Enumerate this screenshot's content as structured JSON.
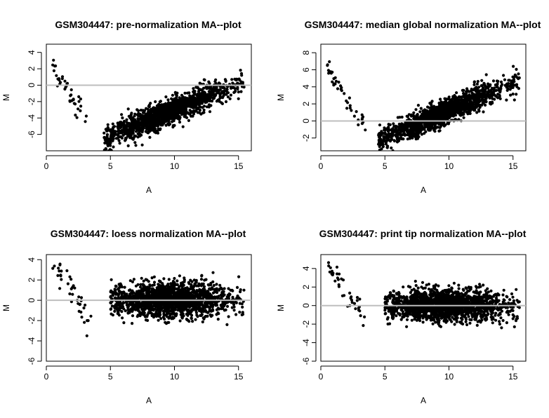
{
  "chart_data": [
    {
      "type": "scatter",
      "title": "GSM304447: pre-normalization MA--plot",
      "xlabel": "A",
      "ylabel": "M",
      "xlim": [
        0,
        16
      ],
      "ylim": [
        -8,
        5
      ],
      "xticks": [
        "0",
        "5",
        "10",
        "15"
      ],
      "yticks": [
        "-6",
        "-4",
        "-2",
        "0",
        "2",
        "4"
      ],
      "reference_line_y": 0,
      "point_color": "#000000",
      "reference_line_color": "#bebebe",
      "point_clouds": [
        {
          "x": [
            4.5,
            15.5
          ],
          "y_at_x_min": -6.5,
          "y_at_x_max": 0.5,
          "spread": 1.3,
          "count": 1600
        },
        {
          "x": [
            0.5,
            3.5
          ],
          "y_at_x_min": 2.0,
          "y_at_x_max": -5.0,
          "spread": 1.8,
          "count": 40
        }
      ]
    },
    {
      "type": "scatter",
      "title": "GSM304447: median global normalization MA--plot",
      "xlabel": "A",
      "ylabel": "M",
      "xlim": [
        0,
        16
      ],
      "ylim": [
        -3.5,
        9
      ],
      "xticks": [
        "0",
        "5",
        "10",
        "15"
      ],
      "yticks": [
        "-2",
        "0",
        "2",
        "4",
        "6",
        "8"
      ],
      "reference_line_y": 0,
      "point_color": "#000000",
      "reference_line_color": "#bebebe",
      "point_clouds": [
        {
          "x": [
            4.5,
            15.5
          ],
          "y_at_x_min": -2.3,
          "y_at_x_max": 4.7,
          "spread": 1.3,
          "count": 1600
        },
        {
          "x": [
            0.5,
            3.5
          ],
          "y_at_x_min": 6.0,
          "y_at_x_max": -1.0,
          "spread": 1.8,
          "count": 40
        }
      ]
    },
    {
      "type": "scatter",
      "title": "GSM304447: loess normalization MA--plot",
      "xlabel": "A",
      "ylabel": "M",
      "xlim": [
        0,
        16
      ],
      "ylim": [
        -6,
        4.5
      ],
      "xticks": [
        "0",
        "5",
        "10",
        "15"
      ],
      "yticks": [
        "-6",
        "-4",
        "-2",
        "0",
        "2",
        "4"
      ],
      "reference_line_y": 0,
      "point_color": "#000000",
      "reference_line_color": "#bebebe",
      "point_clouds": [
        {
          "x": [
            5.0,
            15.5
          ],
          "y_at_x_min": 0.0,
          "y_at_x_max": 0.0,
          "spread": 1.5,
          "count": 1800
        },
        {
          "x": [
            0.5,
            3.5
          ],
          "y_at_x_min": 4.0,
          "y_at_x_max": -2.0,
          "spread": 2.0,
          "count": 40
        }
      ]
    },
    {
      "type": "scatter",
      "title": "GSM304447: print tip normalization MA--plot",
      "xlabel": "A",
      "ylabel": "M",
      "xlim": [
        0,
        16
      ],
      "ylim": [
        -6,
        5.5
      ],
      "xticks": [
        "0",
        "5",
        "10",
        "15"
      ],
      "yticks": [
        "-6",
        "-4",
        "-2",
        "0",
        "2",
        "4"
      ],
      "reference_line_y": 0,
      "point_color": "#000000",
      "reference_line_color": "#bebebe",
      "point_clouds": [
        {
          "x": [
            5.0,
            15.5
          ],
          "y_at_x_min": 0.0,
          "y_at_x_max": 0.0,
          "spread": 1.5,
          "count": 1800
        },
        {
          "x": [
            0.5,
            3.5
          ],
          "y_at_x_min": 5.0,
          "y_at_x_max": -1.5,
          "spread": 2.0,
          "count": 40
        }
      ]
    }
  ]
}
